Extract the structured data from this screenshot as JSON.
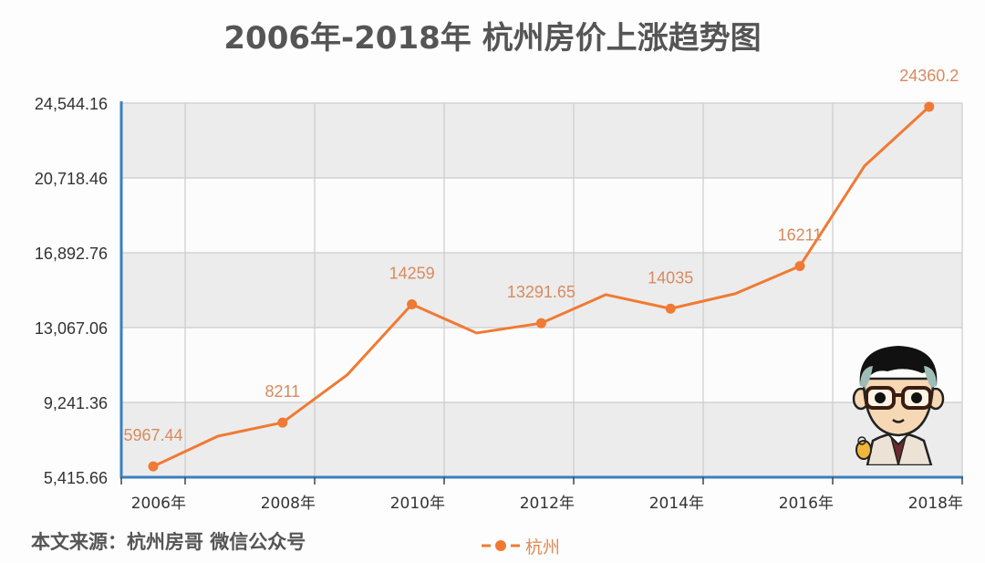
{
  "title": "2006年-2018年 杭州房价上涨趋势图",
  "source": "本文来源：杭州房哥 微信公众号",
  "legend": {
    "label": "杭州",
    "color": "#f07a33"
  },
  "colors": {
    "line": "#f07a33",
    "axis": "#3a7fc1",
    "grid": "#cccccc",
    "band": "#ececec",
    "label": "#d98a5e"
  },
  "chart_data": {
    "type": "line",
    "title": "2006年-2018年 杭州房价上涨趋势图",
    "xlabel": "",
    "ylabel": "",
    "x": [
      "2006",
      "2007",
      "2008",
      "2009",
      "2010",
      "2011",
      "2012",
      "2013",
      "2014",
      "2015",
      "2016",
      "2017",
      "2018"
    ],
    "x_tick_labels": [
      "2006年",
      "2008年",
      "2010年",
      "2012年",
      "2014年",
      "2016年",
      "2018年"
    ],
    "y_tick_labels": [
      "5,415.66",
      "9,241.36",
      "13,067.06",
      "16,892.76",
      "20,718.46",
      "24,544.16"
    ],
    "ylim": [
      5415.66,
      24544.16
    ],
    "grid": true,
    "legend_position": "bottom",
    "series": [
      {
        "name": "杭州",
        "values": [
          5967.44,
          7515,
          8211,
          10650,
          14259,
          12790,
          13291.65,
          14750,
          14035,
          14800,
          16211,
          21330,
          24360.2
        ],
        "labeled_points": {
          "2006": "5967.44",
          "2008": "8211",
          "2010": "14259",
          "2012": "13291.65",
          "2014": "14035",
          "2016": "16211",
          "2018": "24360.2"
        }
      }
    ]
  }
}
